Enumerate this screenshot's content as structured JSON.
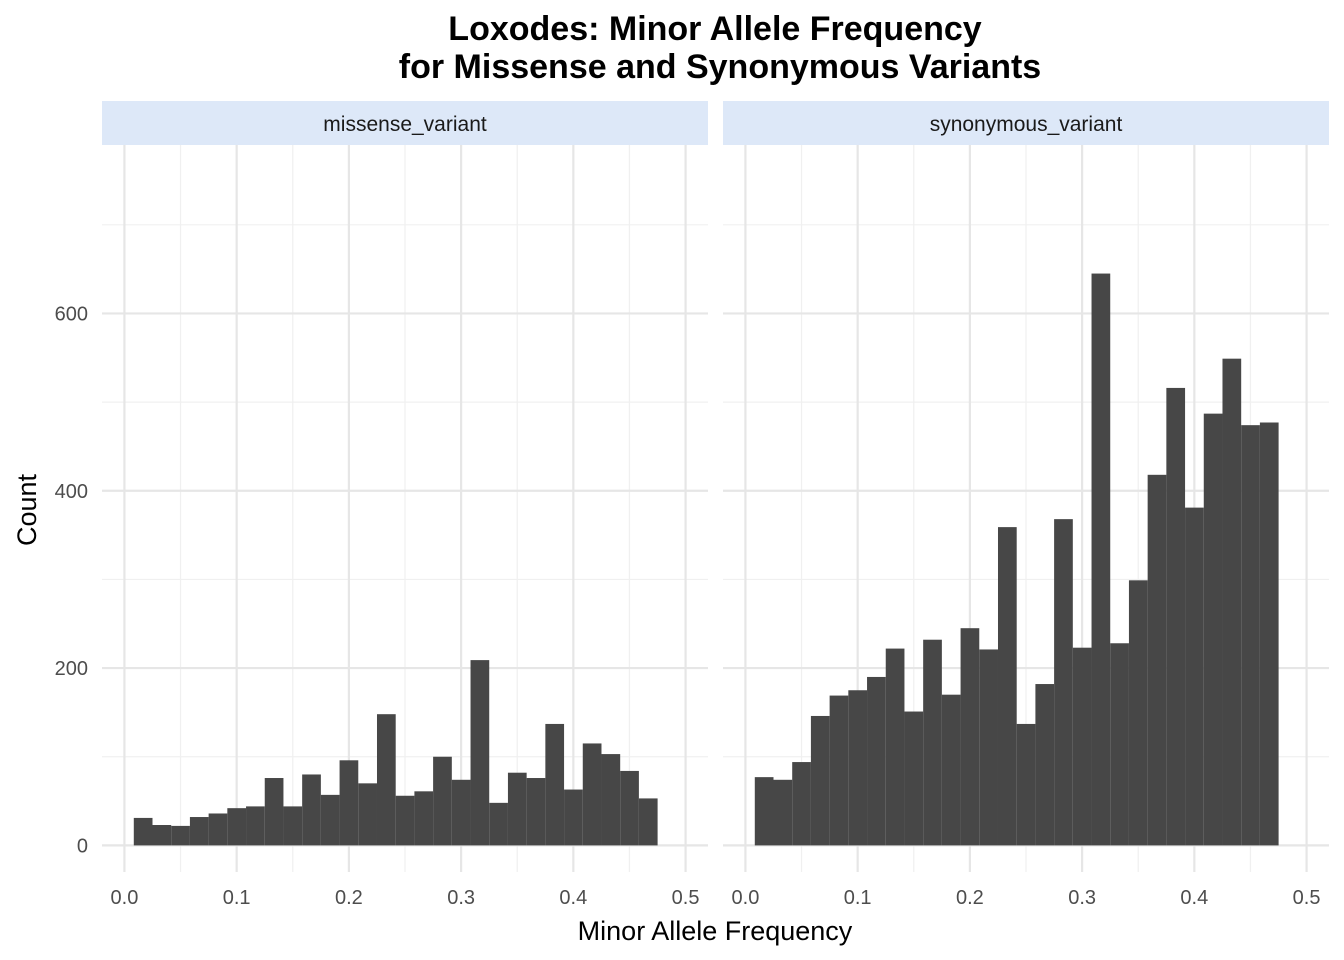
{
  "chart_data": {
    "type": "bar",
    "title": [
      "Loxodes: Minor Allele Frequency",
      "for Missense and Synonymous Variants"
    ],
    "xlabel": "Minor Allele Frequency",
    "ylabel": "Count",
    "xlim": [
      -0.02,
      0.52
    ],
    "ylim": [
      -30,
      790
    ],
    "x_ticks": [
      0.0,
      0.1,
      0.2,
      0.3,
      0.4,
      0.5
    ],
    "x_tick_labels": [
      "0.0",
      "0.1",
      "0.2",
      "0.3",
      "0.4",
      "0.5"
    ],
    "y_ticks": [
      0,
      200,
      400,
      600
    ],
    "y_tick_labels": [
      "0",
      "200",
      "400",
      "600"
    ],
    "grid": true,
    "bar_color": "#474747",
    "strip_color": "#dde8f8",
    "bins": {
      "start": 0.00833,
      "width": 0.01667,
      "count": 29
    },
    "panels": [
      {
        "name": "missense_variant",
        "values": [
          31,
          23,
          22,
          32,
          36,
          42,
          44,
          76,
          44,
          80,
          57,
          96,
          70,
          148,
          56,
          61,
          100,
          74,
          209,
          48,
          82,
          76,
          137,
          63,
          115,
          103,
          84,
          53,
          0
        ]
      },
      {
        "name": "synonymous_variant",
        "values": [
          77,
          74,
          94,
          146,
          169,
          175,
          190,
          222,
          151,
          232,
          170,
          245,
          221,
          359,
          137,
          182,
          368,
          223,
          645,
          228,
          299,
          418,
          516,
          381,
          487,
          549,
          474,
          477,
          0
        ]
      }
    ]
  }
}
